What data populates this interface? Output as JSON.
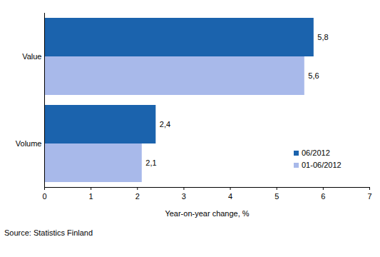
{
  "chart_data": {
    "type": "bar",
    "orientation": "horizontal",
    "categories": [
      "Value",
      "Volume"
    ],
    "series": [
      {
        "name": "06/2012",
        "color": "#1b63ad",
        "values": [
          5.8,
          2.4
        ],
        "value_labels": [
          "5,8",
          "2,4"
        ]
      },
      {
        "name": "01-06/2012",
        "color": "#a8b9ea",
        "values": [
          5.6,
          2.1
        ],
        "value_labels": [
          "5,6",
          "2,1"
        ]
      }
    ],
    "xlabel": "Year-on-year change, %",
    "xlim": [
      0,
      7
    ],
    "xticks": [
      0,
      1,
      2,
      3,
      4,
      5,
      6,
      7
    ],
    "data_labels": true,
    "grid": false,
    "legend": "lower right",
    "caption": "Source: Statistics Finland"
  }
}
